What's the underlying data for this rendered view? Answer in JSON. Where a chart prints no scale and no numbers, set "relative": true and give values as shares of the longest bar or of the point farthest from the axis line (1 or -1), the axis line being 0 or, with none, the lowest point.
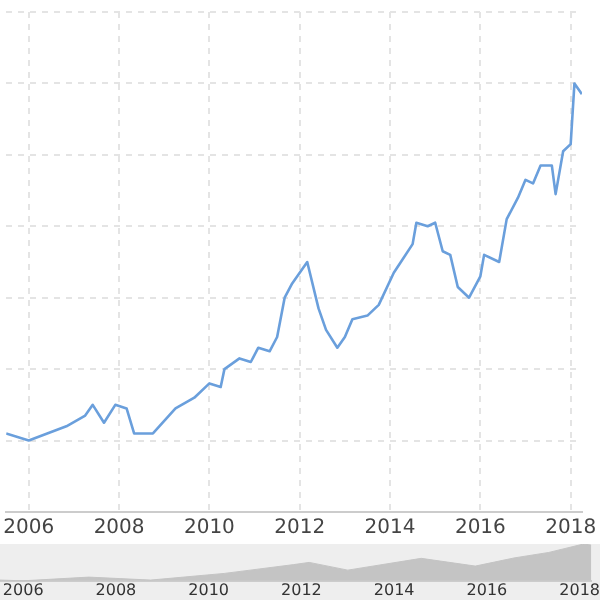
{
  "chart_data": [
    {
      "type": "line",
      "relative": true,
      "grid": true,
      "marker": "none",
      "legend": false,
      "x": [
        "2005-07",
        "2006-01",
        "2006-11",
        "2007-04",
        "2007-06",
        "2007-09",
        "2007-12",
        "2008-03",
        "2008-05",
        "2008-10",
        "2009-04",
        "2009-09",
        "2010-01",
        "2010-04",
        "2010-05",
        "2010-09",
        "2010-12",
        "2011-02",
        "2011-05",
        "2011-07",
        "2011-09",
        "2011-11",
        "2012-03",
        "2012-06",
        "2012-08",
        "2012-11",
        "2013-01",
        "2013-03",
        "2013-07",
        "2013-10",
        "2014-02",
        "2014-07",
        "2014-08",
        "2014-11",
        "2015-01",
        "2015-03",
        "2015-05",
        "2015-07",
        "2015-10",
        "2016-01",
        "2016-02",
        "2016-06",
        "2016-08",
        "2016-11",
        "2017-01",
        "2017-03",
        "2017-05",
        "2017-08",
        "2017-09",
        "2017-11",
        "2018-01",
        "2018-02",
        "2018-04"
      ],
      "series": [
        {
          "color": "#6a9fdc",
          "values": [
            0.02,
            0,
            0.04,
            0.07,
            0.1,
            0.05,
            0.1,
            0.09,
            0.02,
            0.02,
            0.09,
            0.12,
            0.16,
            0.15,
            0.2,
            0.23,
            0.22,
            0.26,
            0.25,
            0.29,
            0.4,
            0.44,
            0.5,
            0.37,
            0.31,
            0.26,
            0.29,
            0.34,
            0.35,
            0.38,
            0.47,
            0.55,
            0.61,
            0.6,
            0.61,
            0.53,
            0.52,
            0.43,
            0.4,
            0.46,
            0.52,
            0.5,
            0.62,
            0.68,
            0.73,
            0.72,
            0.77,
            0.77,
            0.69,
            0.81,
            0.83,
            1,
            0.97
          ]
        }
      ],
      "xlim": [
        "2005-07",
        "2018-04"
      ],
      "xticks": [
        "2006",
        "2008",
        "2010",
        "2012",
        "2014",
        "2016",
        "2018"
      ]
    },
    {
      "type": "area",
      "relative": true,
      "legend": false,
      "x": [
        "2005-07",
        "2006-01",
        "2007-06",
        "2008-10",
        "2010-05",
        "2011-11",
        "2012-03",
        "2013-01",
        "2014-08",
        "2015-10",
        "2016-08",
        "2017-05",
        "2018-02",
        "2018-04"
      ],
      "series": [
        {
          "color": "#c4c4c4",
          "values": [
            0.02,
            0,
            0.1,
            0.02,
            0.2,
            0.44,
            0.5,
            0.29,
            0.61,
            0.4,
            0.62,
            0.77,
            1,
            0.97
          ]
        }
      ],
      "xlim": [
        "2005-07",
        "2018-04"
      ],
      "xticks": [
        "2006",
        "2008",
        "2010",
        "2012",
        "2014",
        "2016",
        "2018"
      ]
    }
  ]
}
